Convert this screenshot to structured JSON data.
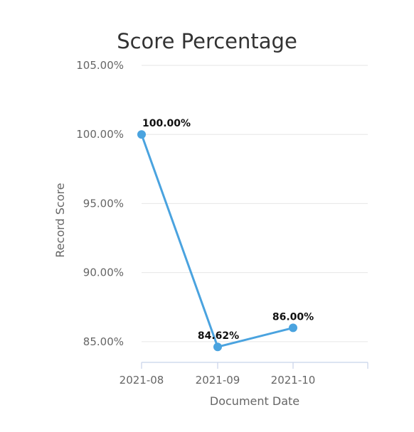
{
  "chart_data": {
    "type": "line",
    "title": "Score Percentage",
    "xlabel": "Document Date",
    "ylabel": "Record Score",
    "categories": [
      "2021-08",
      "2021-09",
      "2021-10"
    ],
    "series": [
      {
        "values": [
          100.0,
          84.62,
          86.0
        ],
        "data_labels": [
          "100.00%",
          "84.62%",
          "86.00%"
        ],
        "color": "#4aa3df"
      }
    ],
    "yticks": [
      85,
      90,
      95,
      100,
      105
    ],
    "ytick_labels": [
      "85.00%",
      "90.00%",
      "95.00%",
      "100.00%",
      "105.00%"
    ],
    "ylim": [
      83.5,
      105
    ],
    "grid": true,
    "legend": "none",
    "colors": {
      "series": "#4aa3df",
      "grid": "#e6e6e6",
      "axis": "#c8d3ea",
      "text": "#666666",
      "title": "#333333"
    }
  }
}
